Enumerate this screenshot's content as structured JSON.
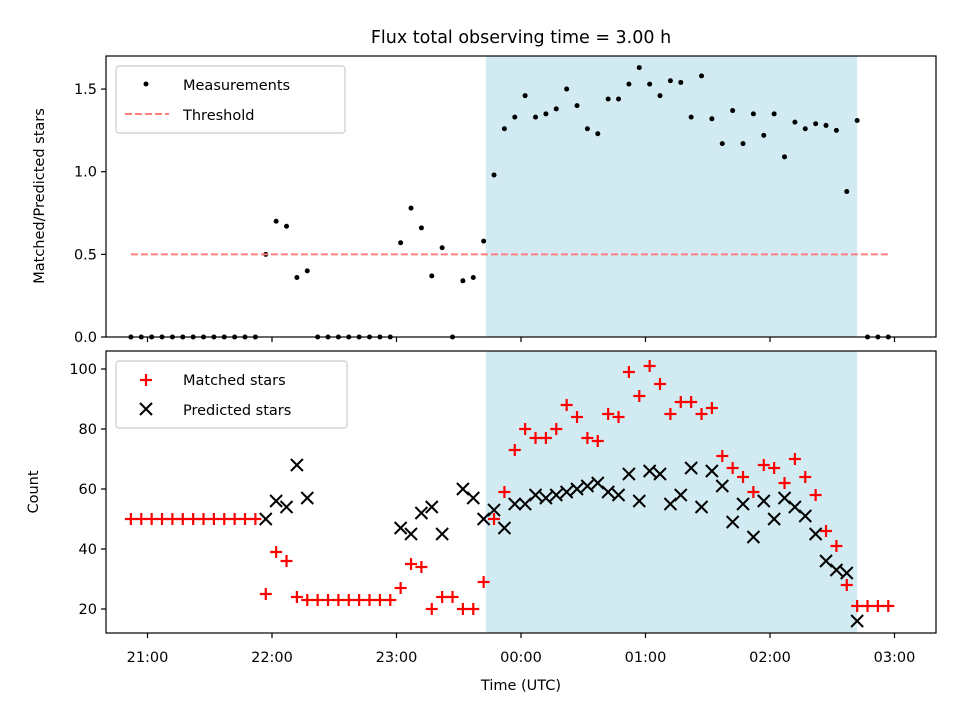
{
  "chart_data": {
    "title": "Flux total observing time = 3.00 h",
    "xlabel": "Time (UTC)",
    "x_ticks": [
      "21:00",
      "22:00",
      "23:00",
      "00:00",
      "01:00",
      "02:00",
      "03:00"
    ],
    "shaded_region": {
      "start": "23:43",
      "end": "02:42",
      "color": "#add8e6"
    },
    "panels": [
      {
        "type": "scatter",
        "ylabel": "Matched/Predicted stars",
        "ylim": [
          0,
          1.7
        ],
        "y_ticks": [
          "0.0",
          "0.5",
          "1.0",
          "1.5"
        ],
        "legend_placement": "top-left",
        "series": [
          {
            "name": "Measurements",
            "marker": "dot",
            "color": "#000000",
            "x": [
              "20:52",
              "20:57",
              "21:02",
              "21:07",
              "21:12",
              "21:17",
              "21:22",
              "21:27",
              "21:32",
              "21:37",
              "21:42",
              "21:47",
              "21:52",
              "21:57",
              "22:02",
              "22:07",
              "22:12",
              "22:17",
              "22:22",
              "22:27",
              "22:32",
              "22:37",
              "22:42",
              "22:47",
              "22:52",
              "22:57",
              "23:02",
              "23:07",
              "23:12",
              "23:17",
              "23:22",
              "23:27",
              "23:32",
              "23:37",
              "23:42",
              "23:47",
              "23:52",
              "23:57",
              "00:02",
              "00:07",
              "00:12",
              "00:17",
              "00:22",
              "00:27",
              "00:32",
              "00:37",
              "00:42",
              "00:47",
              "00:52",
              "00:57",
              "01:02",
              "01:07",
              "01:12",
              "01:17",
              "01:22",
              "01:27",
              "01:32",
              "01:37",
              "01:42",
              "01:47",
              "01:52",
              "01:57",
              "02:02",
              "02:07",
              "02:12",
              "02:17",
              "02:22",
              "02:27",
              "02:32",
              "02:37",
              "02:42",
              "02:47",
              "02:52",
              "02:57"
            ],
            "y": [
              0,
              0,
              0,
              0,
              0,
              0,
              0,
              0,
              0,
              0,
              0,
              0,
              0,
              0.5,
              0.7,
              0.67,
              0.36,
              0.4,
              0,
              0,
              0,
              0,
              0,
              0,
              0,
              0,
              0.57,
              0.78,
              0.66,
              0.37,
              0.54,
              0,
              0.34,
              0.36,
              0.58,
              0.98,
              1.26,
              1.33,
              1.46,
              1.33,
              1.35,
              1.38,
              1.5,
              1.4,
              1.26,
              1.23,
              1.44,
              1.44,
              1.53,
              1.63,
              1.53,
              1.46,
              1.55,
              1.54,
              1.33,
              1.58,
              1.32,
              1.17,
              1.37,
              1.17,
              1.35,
              1.22,
              1.35,
              1.09,
              1.3,
              1.26,
              1.29,
              1.28,
              1.25,
              0.88,
              1.31,
              0,
              0,
              0
            ]
          },
          {
            "name": "Threshold",
            "marker": "dashed-line",
            "color": "#ff7f7f",
            "x": [
              "20:52",
              "02:57"
            ],
            "y": [
              0.5,
              0.5
            ]
          }
        ]
      },
      {
        "type": "scatter",
        "ylabel": "Count",
        "ylim": [
          12,
          106
        ],
        "y_ticks": [
          "20",
          "40",
          "60",
          "80",
          "100"
        ],
        "legend_placement": "top-left",
        "series": [
          {
            "name": "Matched stars",
            "marker": "plus",
            "color": "#ff0000",
            "x": [
              "20:52",
              "20:57",
              "21:02",
              "21:07",
              "21:12",
              "21:17",
              "21:22",
              "21:27",
              "21:32",
              "21:37",
              "21:42",
              "21:47",
              "21:52",
              "21:57",
              "22:02",
              "22:07",
              "22:12",
              "22:17",
              "22:22",
              "22:27",
              "22:32",
              "22:37",
              "22:42",
              "22:47",
              "22:52",
              "22:57",
              "23:02",
              "23:07",
              "23:12",
              "23:17",
              "23:22",
              "23:27",
              "23:32",
              "23:37",
              "23:42",
              "23:47",
              "23:52",
              "23:57",
              "00:02",
              "00:07",
              "00:12",
              "00:17",
              "00:22",
              "00:27",
              "00:32",
              "00:37",
              "00:42",
              "00:47",
              "00:52",
              "00:57",
              "01:02",
              "01:07",
              "01:12",
              "01:17",
              "01:22",
              "01:27",
              "01:32",
              "01:37",
              "01:42",
              "01:47",
              "01:52",
              "01:57",
              "02:02",
              "02:07",
              "02:12",
              "02:17",
              "02:22",
              "02:27",
              "02:32",
              "02:37",
              "02:42",
              "02:47",
              "02:52",
              "02:57"
            ],
            "y": [
              50,
              50,
              50,
              50,
              50,
              50,
              50,
              50,
              50,
              50,
              50,
              50,
              50,
              25,
              39,
              36,
              24,
              23,
              23,
              23,
              23,
              23,
              23,
              23,
              23,
              23,
              27,
              35,
              34,
              20,
              24,
              24,
              20,
              20,
              29,
              50,
              59,
              73,
              80,
              77,
              77,
              80,
              88,
              84,
              77,
              76,
              85,
              84,
              99,
              91,
              101,
              95,
              85,
              89,
              89,
              85,
              87,
              71,
              67,
              64,
              59,
              68,
              67,
              62,
              70,
              64,
              58,
              46,
              41,
              28,
              21,
              21,
              21,
              21
            ]
          },
          {
            "name": "Predicted stars",
            "marker": "x",
            "color": "#000000",
            "x": [
              "21:57",
              "22:02",
              "22:07",
              "22:12",
              "22:17",
              "23:02",
              "23:07",
              "23:12",
              "23:17",
              "23:22",
              "23:32",
              "23:37",
              "23:42",
              "23:47",
              "23:52",
              "23:57",
              "00:02",
              "00:07",
              "00:12",
              "00:17",
              "00:22",
              "00:27",
              "00:32",
              "00:37",
              "00:42",
              "00:47",
              "00:52",
              "00:57",
              "01:02",
              "01:07",
              "01:12",
              "01:17",
              "01:22",
              "01:27",
              "01:32",
              "01:37",
              "01:42",
              "01:47",
              "01:52",
              "01:57",
              "02:02",
              "02:07",
              "02:12",
              "02:17",
              "02:22",
              "02:27",
              "02:32",
              "02:37",
              "02:42"
            ],
            "y": [
              50,
              56,
              54,
              68,
              57,
              47,
              45,
              52,
              54,
              45,
              60,
              57,
              50,
              53,
              47,
              55,
              55,
              58,
              57,
              58,
              59,
              60,
              61,
              62,
              59,
              58,
              65,
              56,
              66,
              65,
              55,
              58,
              67,
              54,
              66,
              61,
              49,
              55,
              44,
              56,
              50,
              57,
              54,
              51,
              45,
              36,
              33,
              32,
              16
            ]
          }
        ]
      }
    ]
  }
}
